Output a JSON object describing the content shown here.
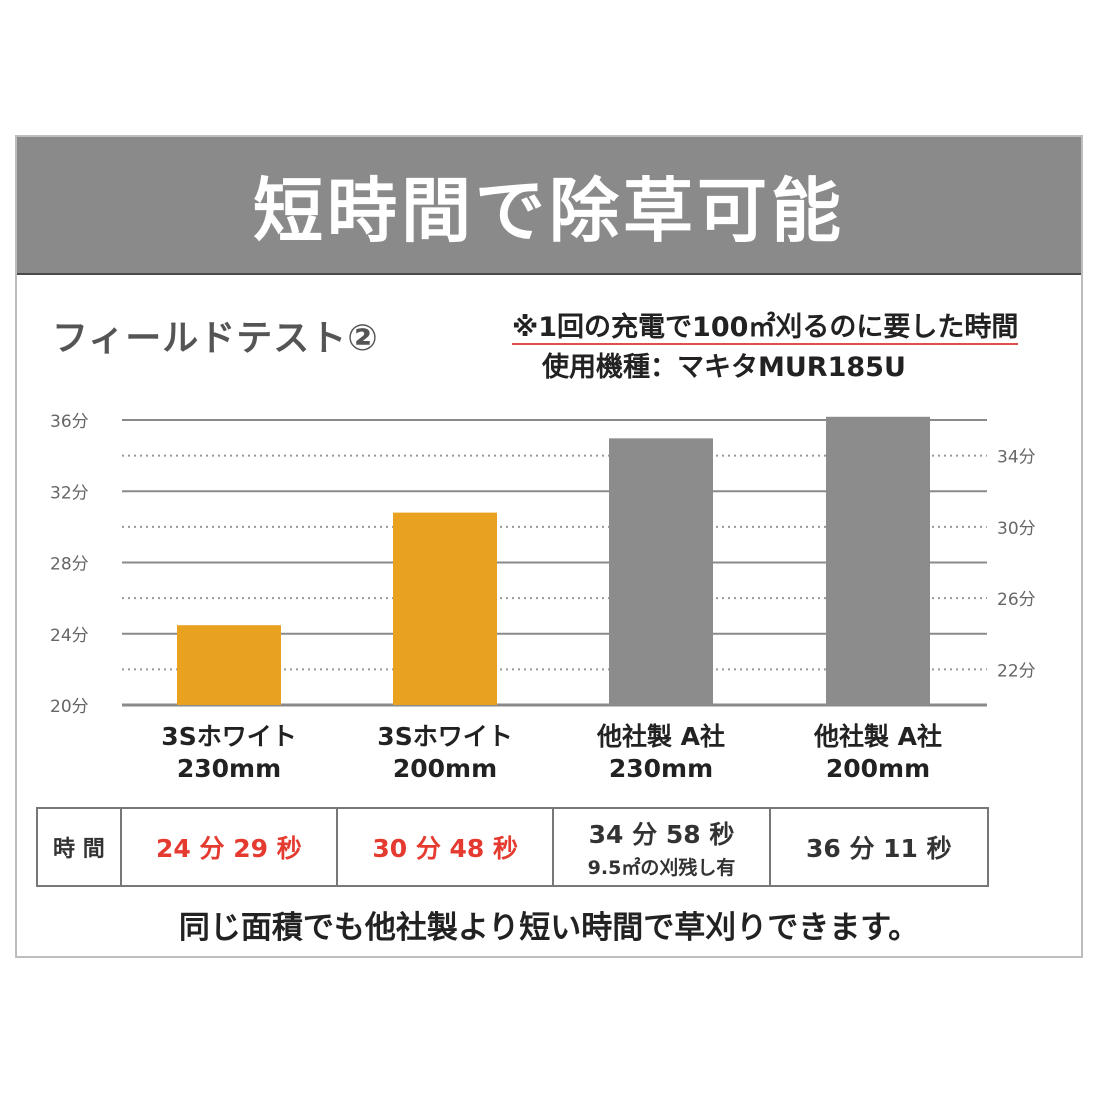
{
  "banner": {
    "title": "短時間で除草可能"
  },
  "section": {
    "title": "フィールドテスト②"
  },
  "notes": {
    "line1": "※1回の充電で100㎡刈るのに要した時間",
    "line2": "使用機種：マキタMUR185U"
  },
  "colors": {
    "orange": "#e8a21f",
    "gray": "#8c8c8c",
    "red": "#e53a2f",
    "banner": "#8a8a8a"
  },
  "chart_data": {
    "type": "bar",
    "unit": "分",
    "categories": [
      [
        "3Sホワイト",
        "230mm"
      ],
      [
        "3Sホワイト",
        "200mm"
      ],
      [
        "他社製 A社",
        "230mm"
      ],
      [
        "他社製 A社",
        "200mm"
      ]
    ],
    "values": [
      24.48,
      30.8,
      34.97,
      36.18
    ],
    "bar_colors": [
      "#e8a21f",
      "#e8a21f",
      "#8c8c8c",
      "#8c8c8c"
    ],
    "ylim": [
      20,
      36
    ],
    "left_ticks": [
      "36分",
      "32分",
      "28分",
      "24分",
      "20分"
    ],
    "left_tick_values": [
      36,
      32,
      28,
      24,
      20
    ],
    "right_ticks": [
      "34分",
      "30分",
      "26分",
      "22分"
    ],
    "right_tick_values": [
      34,
      30,
      26,
      22
    ],
    "grid": "solid lines at left ticks, dotted lines at right ticks"
  },
  "table": {
    "header": "時 間",
    "cells": [
      {
        "main": "24 分 29 秒",
        "sub": ""
      },
      {
        "main": "30 分 48 秒",
        "sub": ""
      },
      {
        "main": "34 分 58 秒",
        "sub": "9.5㎡の刈残し有"
      },
      {
        "main": "36 分 11 秒",
        "sub": ""
      }
    ]
  },
  "footer": {
    "text": "同じ面積でも他社製より短い時間で草刈りできます。"
  }
}
